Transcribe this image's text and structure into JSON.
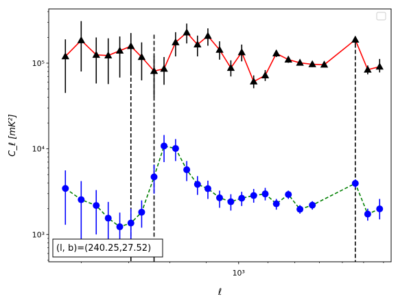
{
  "chart_data": {
    "type": "scatter",
    "title": "",
    "xlabel": "ℓ",
    "ylabel": "C_ℓ  [mK²]",
    "xscale": "log",
    "yscale": "log",
    "xlim": [
      540,
      1640
    ],
    "ylim": [
      480,
      430000
    ],
    "x_tick_labels": [
      {
        "value": 1000,
        "label": "10³"
      }
    ],
    "y_tick_labels": [
      {
        "value": 1000,
        "label": "10³"
      },
      {
        "value": 10000,
        "label": "10⁴"
      },
      {
        "value": 100000,
        "label": "10⁵"
      }
    ],
    "legend": {
      "position": "upper right",
      "entries": []
    },
    "annotation": "(l, b)=(240.25,27.52)",
    "vertical_lines": [
      705,
      760,
      1460
    ],
    "series": [
      {
        "marker": "triangle",
        "color": "#000000",
        "line_color": "#ff0000",
        "line_style": "solid",
        "points": [
          {
            "x": 570,
            "y": 120000,
            "low": 45000,
            "high": 190000
          },
          {
            "x": 600,
            "y": 185000,
            "low": 80000,
            "high": 310000
          },
          {
            "x": 630,
            "y": 125000,
            "low": 58000,
            "high": 200000
          },
          {
            "x": 655,
            "y": 123000,
            "low": 57000,
            "high": 195000
          },
          {
            "x": 680,
            "y": 140000,
            "low": 68000,
            "high": 205000
          },
          {
            "x": 705,
            "y": 158000,
            "low": 72000,
            "high": 225000
          },
          {
            "x": 730,
            "y": 118000,
            "low": 63000,
            "high": 175000
          },
          {
            "x": 760,
            "y": 81000,
            "low": 40000,
            "high": 122000
          },
          {
            "x": 785,
            "y": 86000,
            "low": 56000,
            "high": 118000
          },
          {
            "x": 815,
            "y": 175000,
            "low": 120000,
            "high": 230000
          },
          {
            "x": 845,
            "y": 228000,
            "low": 170000,
            "high": 290000
          },
          {
            "x": 875,
            "y": 165000,
            "low": 120000,
            "high": 210000
          },
          {
            "x": 905,
            "y": 208000,
            "low": 160000,
            "high": 255000
          },
          {
            "x": 940,
            "y": 143000,
            "low": 110000,
            "high": 180000
          },
          {
            "x": 975,
            "y": 88000,
            "low": 70000,
            "high": 108000
          },
          {
            "x": 1010,
            "y": 134000,
            "low": 105000,
            "high": 165000
          },
          {
            "x": 1050,
            "y": 61000,
            "low": 51000,
            "high": 72000
          },
          {
            "x": 1090,
            "y": 72000,
            "low": 62000,
            "high": 83000
          },
          {
            "x": 1130,
            "y": 130000,
            "low": 118000,
            "high": 142000
          },
          {
            "x": 1175,
            "y": 110000,
            "low": 101000,
            "high": 120000
          },
          {
            "x": 1220,
            "y": 101000,
            "low": 94000,
            "high": 110000
          },
          {
            "x": 1270,
            "y": 97000,
            "low": 90000,
            "high": 104000
          },
          {
            "x": 1320,
            "y": 96000,
            "low": 90000,
            "high": 102000
          },
          {
            "x": 1460,
            "y": 188000,
            "low": 165000,
            "high": 205000
          },
          {
            "x": 1520,
            "y": 84000,
            "low": 74000,
            "high": 94000
          },
          {
            "x": 1580,
            "y": 91000,
            "low": 78000,
            "high": 112000
          }
        ]
      },
      {
        "marker": "circle",
        "color": "#0000ff",
        "line_color": "#008000",
        "line_style": "dashed",
        "points": [
          {
            "x": 570,
            "y": 3450,
            "low": 1300,
            "high": 5600
          },
          {
            "x": 600,
            "y": 2550,
            "low": 850,
            "high": 4200
          },
          {
            "x": 630,
            "y": 2180,
            "low": 1000,
            "high": 3300
          },
          {
            "x": 655,
            "y": 1550,
            "low": 700,
            "high": 2400
          },
          {
            "x": 680,
            "y": 1230,
            "low": 680,
            "high": 1800
          },
          {
            "x": 705,
            "y": 1360,
            "low": 750,
            "high": 2000
          },
          {
            "x": 730,
            "y": 1820,
            "low": 1200,
            "high": 2500
          },
          {
            "x": 760,
            "y": 4700,
            "low": 3000,
            "high": 6500
          },
          {
            "x": 785,
            "y": 10800,
            "low": 7000,
            "high": 14500
          },
          {
            "x": 815,
            "y": 10100,
            "low": 7200,
            "high": 13000
          },
          {
            "x": 845,
            "y": 5700,
            "low": 4200,
            "high": 7200
          },
          {
            "x": 875,
            "y": 3850,
            "low": 2900,
            "high": 4800
          },
          {
            "x": 905,
            "y": 3430,
            "low": 2600,
            "high": 4250
          },
          {
            "x": 940,
            "y": 2680,
            "low": 2050,
            "high": 3250
          },
          {
            "x": 975,
            "y": 2410,
            "low": 1900,
            "high": 2950
          },
          {
            "x": 1010,
            "y": 2650,
            "low": 2150,
            "high": 3150
          },
          {
            "x": 1050,
            "y": 2850,
            "low": 2350,
            "high": 3400
          },
          {
            "x": 1090,
            "y": 2980,
            "low": 2500,
            "high": 3500
          },
          {
            "x": 1130,
            "y": 2280,
            "low": 1950,
            "high": 2600
          },
          {
            "x": 1175,
            "y": 2930,
            "low": 2600,
            "high": 3250
          },
          {
            "x": 1220,
            "y": 1970,
            "low": 1750,
            "high": 2200
          },
          {
            "x": 1270,
            "y": 2200,
            "low": 1950,
            "high": 2450
          },
          {
            "x": 1460,
            "y": 3950,
            "low": 3500,
            "high": 4400
          },
          {
            "x": 1520,
            "y": 1730,
            "low": 1450,
            "high": 2000
          },
          {
            "x": 1580,
            "y": 1990,
            "low": 1500,
            "high": 2600
          }
        ]
      }
    ]
  }
}
